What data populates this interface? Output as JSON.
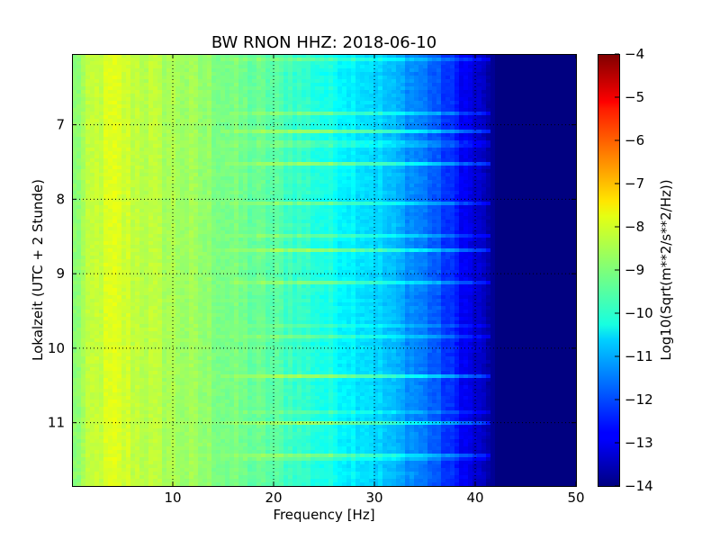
{
  "chart_data": {
    "type": "heatmap",
    "title": "BW RNON HHZ: 2018-06-10",
    "xlabel": "Frequency [Hz]",
    "ylabel": "Lokalzeit (UTC + 2 Stunde)",
    "xlim": [
      0,
      50
    ],
    "ylim": [
      6.05,
      11.85
    ],
    "y_inverted": true,
    "x_ticks": [
      10,
      20,
      30,
      40,
      50
    ],
    "y_ticks": [
      7,
      8,
      9,
      10,
      11
    ],
    "grid": true,
    "colormap": "jet",
    "colorbar": {
      "label": "Log10(Sqrt(m**2/s**2/Hz))",
      "vmin": -14,
      "vmax": -4,
      "ticks": [
        -4,
        -5,
        -6,
        -7,
        -8,
        -9,
        -10,
        -11,
        -12,
        -13,
        -14
      ]
    },
    "spectrum_profile": {
      "frequency_hz": [
        0,
        2,
        4,
        6,
        10,
        14,
        16,
        20,
        25,
        30,
        35,
        38,
        40,
        41.5,
        42,
        50
      ],
      "log10_amplitude": [
        -9.0,
        -8.4,
        -8.1,
        -8.3,
        -8.6,
        -8.9,
        -9.1,
        -9.4,
        -10.0,
        -10.6,
        -11.6,
        -12.5,
        -13.2,
        -13.6,
        -14.0,
        -14.0
      ]
    }
  }
}
